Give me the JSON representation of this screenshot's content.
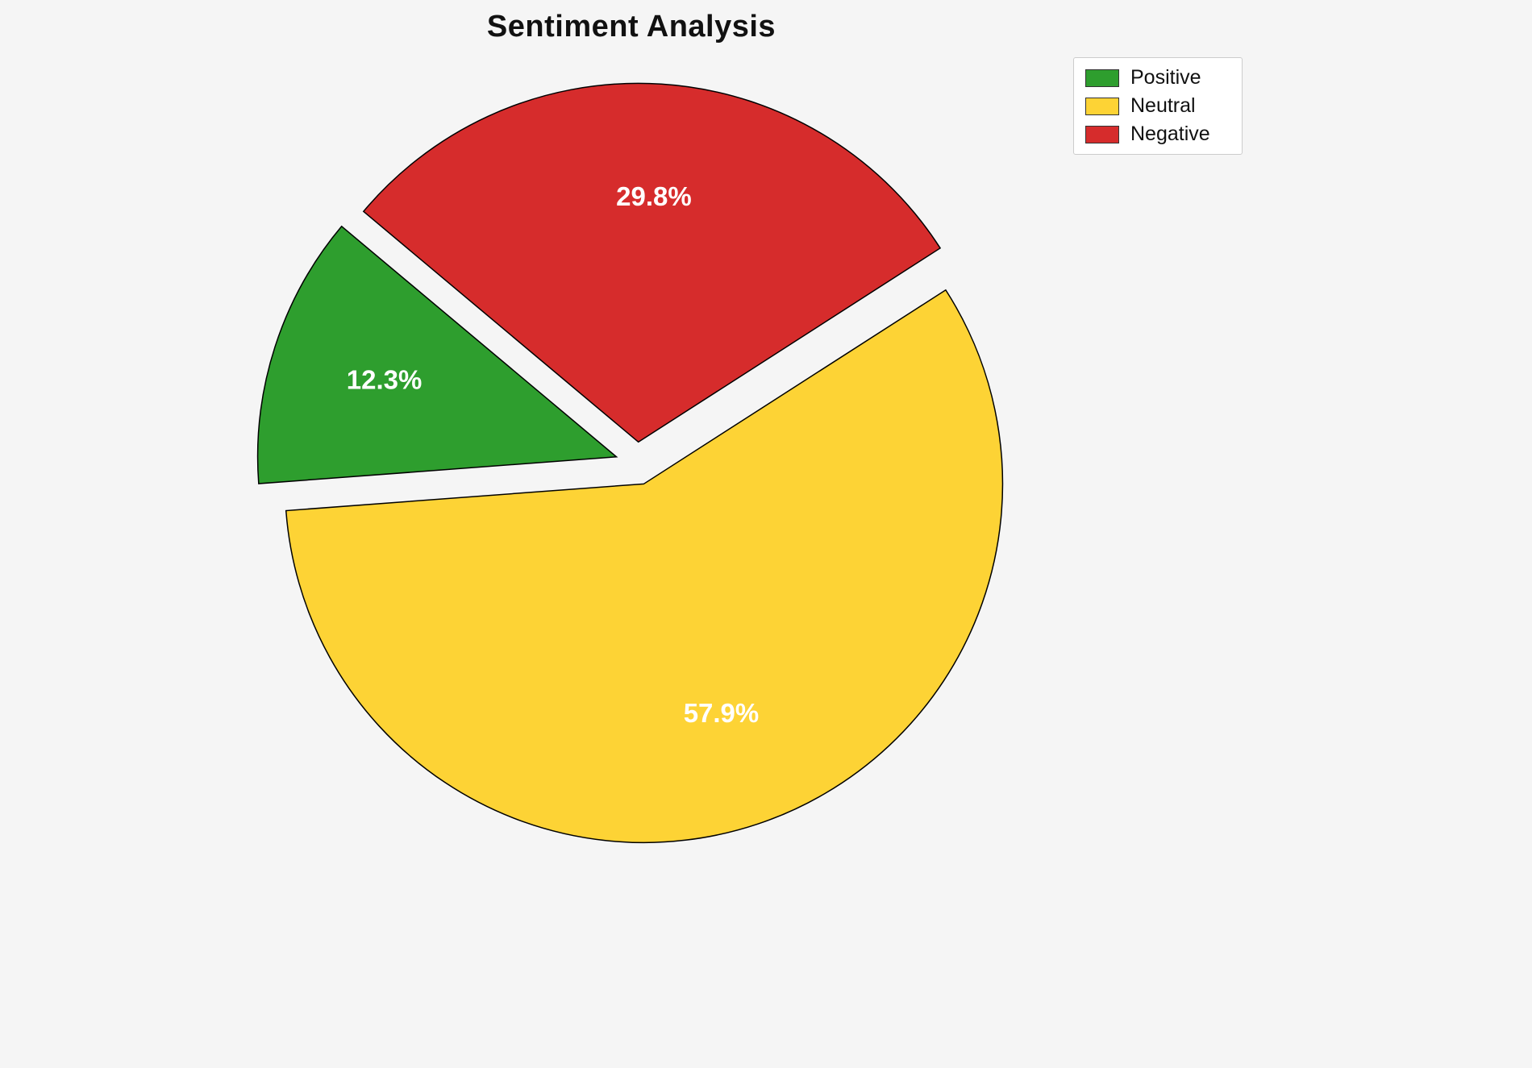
{
  "chart_data": {
    "type": "pie",
    "title": "Sentiment Analysis",
    "labels": [
      "Positive",
      "Neutral",
      "Negative"
    ],
    "values": [
      12.3,
      57.9,
      29.8
    ],
    "display_labels": [
      "12.3%",
      "57.9%",
      "29.8%"
    ],
    "colors": [
      "#2e9e2e",
      "#fdd335",
      "#d62c2c"
    ],
    "edge_color": "#000000",
    "label_color": "#ffffff",
    "start_angle": 140,
    "direction": "counterclockwise",
    "explode": [
      0.06,
      0.06,
      0.06
    ],
    "legend": {
      "position": "upper right",
      "entries": [
        "Positive",
        "Neutral",
        "Negative"
      ]
    },
    "background_color": "#f5f5f5"
  }
}
